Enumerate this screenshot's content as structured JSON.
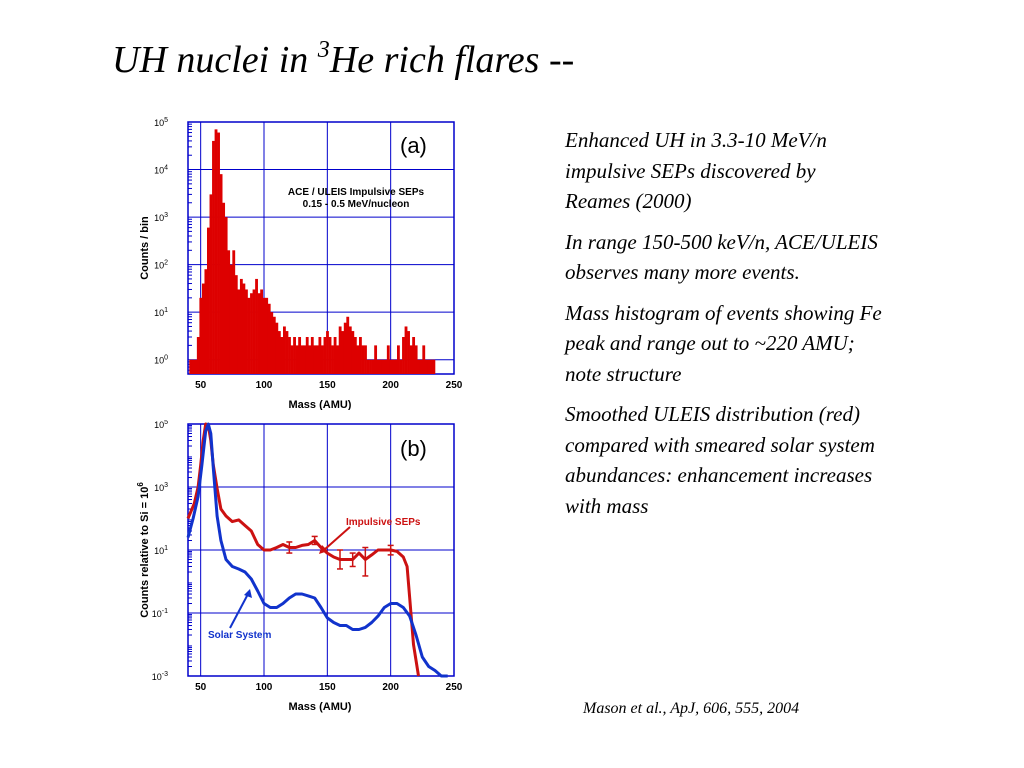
{
  "slide": {
    "title_main": "UH nuclei in ",
    "title_sup": "3",
    "title_rest": "He rich flares --",
    "bullets": [
      "Enhanced  UH in 3.3-10 MeV/n impulsive SEPs discovered by Reames (2000)",
      "In range 150-500 keV/n, ACE/ULEIS observes many more events.",
      "Mass histogram of events showing Fe peak and range out to ~220 AMU;  note structure",
      "Smoothed ULEIS distribution (red) compared with smeared solar system abundances: enhancement increases with mass"
    ],
    "citation": "Mason et al., ApJ, 606, 555, 2004"
  },
  "chart_data": [
    {
      "type": "bar",
      "panel_label": "(a)",
      "annotation_line1": "ACE / ULEIS Impulsive SEPs",
      "annotation_line2": "0.15 - 0.5 MeV/nucleon",
      "xlabel": "Mass (AMU)",
      "ylabel": "Counts / bin",
      "xlim": [
        40,
        250
      ],
      "ylim": [
        0.5,
        100000
      ],
      "yscale": "log",
      "grid": true,
      "x_ticks": [
        "50",
        "100",
        "150",
        "200",
        "250"
      ],
      "y_tick_base": "10",
      "y_tick_exponents": [
        "0",
        "1",
        "2",
        "3",
        "4",
        "5"
      ],
      "bar_color": "#dd0000",
      "bins_start": 41,
      "bin_width": 2,
      "values": [
        1,
        1,
        1,
        3,
        20,
        40,
        80,
        600,
        3000,
        40000,
        70000,
        60000,
        8000,
        2000,
        1000,
        200,
        100,
        200,
        60,
        30,
        50,
        40,
        30,
        20,
        25,
        30,
        50,
        25,
        30,
        20,
        20,
        15,
        10,
        8,
        6,
        4,
        3,
        5,
        4,
        3,
        2,
        3,
        2,
        3,
        2,
        2,
        3,
        2,
        3,
        2,
        2,
        3,
        2,
        3,
        4,
        3,
        2,
        3,
        2,
        5,
        4,
        6,
        8,
        5,
        4,
        3,
        2,
        3,
        2,
        2,
        1,
        1,
        1,
        2,
        1,
        1,
        1,
        1,
        2,
        1,
        1,
        1,
        2,
        1,
        3,
        5,
        4,
        2,
        3,
        2,
        1,
        1,
        2,
        1,
        1,
        1,
        1
      ]
    },
    {
      "type": "line",
      "panel_label": "(b)",
      "xlabel": "Mass (AMU)",
      "ylabel": "Counts relative to Si = 10",
      "ylabel_sup": "6",
      "xlim": [
        40,
        250
      ],
      "ylim": [
        0.001,
        100000
      ],
      "yscale": "log",
      "grid": true,
      "x_ticks": [
        "50",
        "100",
        "150",
        "200",
        "250"
      ],
      "y_tick_base": "10",
      "y_tick_exponents": [
        "-3",
        "-1",
        "1",
        "3",
        "5"
      ],
      "series": [
        {
          "name": "Impulsive SEPs",
          "color": "#cc1111",
          "x": [
            40,
            45,
            48,
            50,
            52,
            54,
            56,
            58,
            60,
            63,
            66,
            70,
            75,
            80,
            85,
            90,
            95,
            100,
            105,
            110,
            115,
            120,
            125,
            130,
            135,
            140,
            145,
            150,
            155,
            160,
            165,
            170,
            175,
            180,
            185,
            190,
            195,
            200,
            205,
            210,
            213,
            215,
            218,
            222
          ],
          "y": [
            100,
            300,
            1000,
            5000,
            30000,
            100000,
            90000,
            30000,
            5000,
            900,
            200,
            120,
            80,
            90,
            60,
            40,
            15,
            10,
            10,
            12,
            15,
            12,
            12,
            14,
            15,
            20,
            12,
            8,
            6,
            5,
            5,
            5,
            8,
            5,
            7,
            10,
            10,
            10,
            9,
            6,
            3,
            0.3,
            0.01,
            0.001
          ]
        },
        {
          "name": "Solar System",
          "color": "#1133cc",
          "x": [
            40,
            44,
            48,
            51,
            54,
            56,
            58,
            60,
            63,
            66,
            70,
            75,
            80,
            85,
            90,
            95,
            100,
            105,
            110,
            115,
            120,
            125,
            130,
            135,
            140,
            145,
            150,
            155,
            160,
            165,
            170,
            175,
            180,
            185,
            190,
            195,
            200,
            205,
            210,
            215,
            220,
            225,
            230,
            235,
            240,
            245
          ],
          "y": [
            25,
            100,
            500,
            5000,
            60000,
            100000,
            50000,
            4000,
            120,
            20,
            5,
            3,
            2.5,
            2,
            1.2,
            0.5,
            0.2,
            0.15,
            0.15,
            0.2,
            0.3,
            0.4,
            0.4,
            0.35,
            0.3,
            0.15,
            0.07,
            0.05,
            0.04,
            0.04,
            0.03,
            0.03,
            0.035,
            0.05,
            0.08,
            0.15,
            0.2,
            0.2,
            0.15,
            0.08,
            0.02,
            0.004,
            0.002,
            0.0015,
            0.001,
            0.0008
          ]
        }
      ],
      "error_bars": [
        {
          "x": 120,
          "y": 12,
          "low": 8,
          "high": 18
        },
        {
          "x": 140,
          "y": 20,
          "low": 15,
          "high": 27
        },
        {
          "x": 160,
          "y": 5,
          "low": 2.5,
          "high": 10
        },
        {
          "x": 170,
          "y": 5,
          "low": 3,
          "high": 8
        },
        {
          "x": 180,
          "y": 5,
          "low": 1.5,
          "high": 12
        },
        {
          "x": 200,
          "y": 10,
          "low": 7,
          "high": 14
        }
      ],
      "annotations": [
        "Impulsive SEPs",
        "Solar System"
      ]
    }
  ]
}
